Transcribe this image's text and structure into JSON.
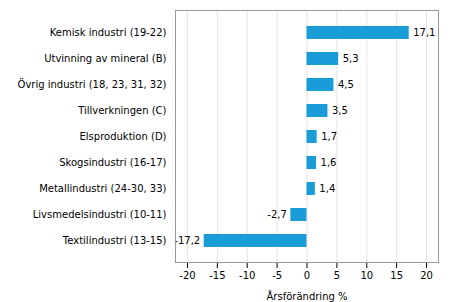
{
  "chart_data": {
    "type": "bar",
    "orientation": "horizontal",
    "xlabel": "Årsförändring %",
    "categories": [
      "Textilindustri (13-15)",
      "Livsmedelsindustri (10-11)",
      "Metallindustri (24-30, 33)",
      "Skogsindustri (16-17)",
      "Elsproduktion (D)",
      "Tillverkningen (C)",
      "Övrig industri (18, 23, 31, 32)",
      "Utvinning av mineral (B)",
      "Kemisk industri (19-22)"
    ],
    "values": [
      -17.2,
      -2.7,
      1.4,
      1.6,
      1.7,
      3.5,
      4.5,
      5.3,
      17.1
    ],
    "value_labels": [
      "-17,2",
      "-2,7",
      "1,4",
      "1,6",
      "1,7",
      "3,5",
      "4,5",
      "5,3",
      "17,1"
    ],
    "data_labels": true,
    "color": "#1a9cd8",
    "xlim": [
      -22,
      22
    ],
    "xticks": [
      -20,
      -15,
      -10,
      -5,
      0,
      5,
      10,
      15,
      20
    ],
    "grid": true
  }
}
